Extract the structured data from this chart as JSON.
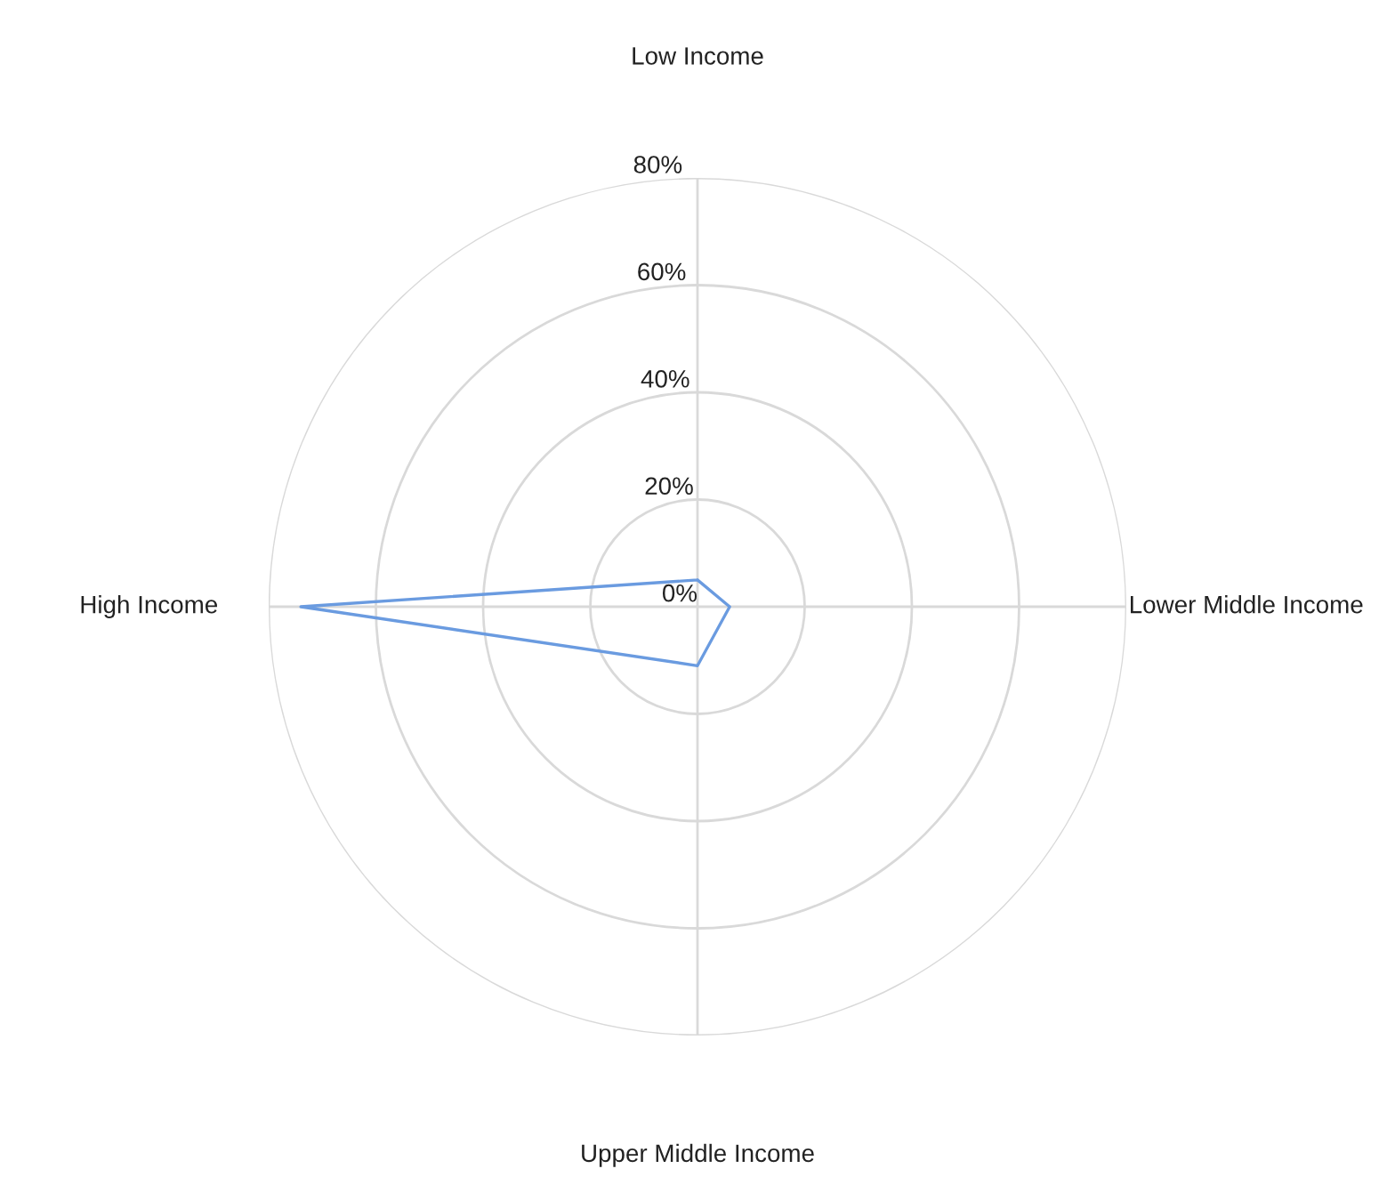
{
  "chart_data": {
    "type": "radar",
    "categories": [
      "Low Income",
      "Lower Middle Income",
      "Upper Middle Income",
      "High Income"
    ],
    "series": [
      {
        "color": "#6a9be0",
        "values": [
          5,
          6,
          11,
          74
        ]
      }
    ],
    "ylim": [
      0,
      80
    ],
    "yticks": [
      {
        "value": 0,
        "label": "0%"
      },
      {
        "value": 20,
        "label": "20%"
      },
      {
        "value": 40,
        "label": "40%"
      },
      {
        "value": 60,
        "label": "60%"
      },
      {
        "value": 80,
        "label": "80%"
      }
    ],
    "grid": true,
    "legend": false,
    "marker": "none",
    "line_style": "solid"
  }
}
